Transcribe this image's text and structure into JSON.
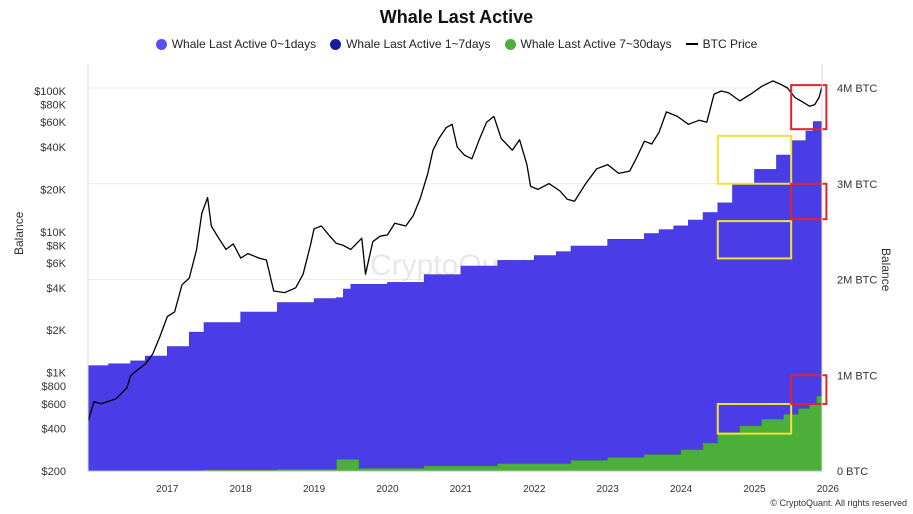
{
  "chart_data": {
    "type": "area",
    "title": "Whale Last Active",
    "legend_position": "top-center",
    "left_axis_title": "Balance",
    "right_axis_title": "Balance",
    "credit": "© CryptoQuant. All rights reserved",
    "watermark": "CryptoQuant",
    "x_ticks": [
      "2017",
      "2018",
      "2019",
      "2020",
      "2021",
      "2022",
      "2023",
      "2024",
      "2025",
      "2026"
    ],
    "x_range": [
      2016.42,
      2026.42
    ],
    "left_axis": {
      "label": "Balance",
      "scale": "log",
      "range": [
        200,
        130000
      ],
      "ticks": [
        {
          "v": 200,
          "t": "$200"
        },
        {
          "v": 400,
          "t": "$400"
        },
        {
          "v": 600,
          "t": "$600"
        },
        {
          "v": 800,
          "t": "$800"
        },
        {
          "v": 1000,
          "t": "$1K"
        },
        {
          "v": 2000,
          "t": "$2K"
        },
        {
          "v": 4000,
          "t": "$4K"
        },
        {
          "v": 6000,
          "t": "$6K"
        },
        {
          "v": 8000,
          "t": "$8K"
        },
        {
          "v": 10000,
          "t": "$10K"
        },
        {
          "v": 20000,
          "t": "$20K"
        },
        {
          "v": 40000,
          "t": "$40K"
        },
        {
          "v": 60000,
          "t": "$60K"
        },
        {
          "v": 80000,
          "t": "$80K"
        },
        {
          "v": 100000,
          "t": "$100K"
        }
      ]
    },
    "right_axis": {
      "label": "Balance",
      "scale": "linear",
      "range": [
        0,
        4200000
      ],
      "ticks": [
        {
          "v": 0,
          "t": "0 BTC"
        },
        {
          "v": 1000000,
          "t": "1M BTC"
        },
        {
          "v": 2000000,
          "t": "2M BTC"
        },
        {
          "v": 3000000,
          "t": "3M BTC"
        },
        {
          "v": 4000000,
          "t": "4M BTC"
        }
      ]
    },
    "grid": "horizontal",
    "series": [
      {
        "name": "Whale Last Active 0~1days",
        "color": "#4a3de8",
        "kind": "area",
        "axis": "right",
        "x": [
          2016.42,
          2016.7,
          2017.0,
          2017.2,
          2017.5,
          2017.8,
          2018.0,
          2018.5,
          2019.0,
          2019.5,
          2019.8,
          2019.9,
          2020.0,
          2020.5,
          2021.0,
          2021.5,
          2022.0,
          2022.5,
          2022.8,
          2023.0,
          2023.5,
          2024.0,
          2024.2,
          2024.4,
          2024.6,
          2024.8,
          2025.0,
          2025.2,
          2025.5,
          2025.8,
          2026.0,
          2026.2,
          2026.3,
          2026.42
        ],
        "y": [
          1100000,
          1120000,
          1150000,
          1200000,
          1300000,
          1450000,
          1550000,
          1660000,
          1760000,
          1800000,
          1810000,
          1900000,
          1950000,
          1970000,
          2050000,
          2140000,
          2200000,
          2250000,
          2290000,
          2350000,
          2420000,
          2480000,
          2520000,
          2560000,
          2620000,
          2700000,
          2800000,
          3000000,
          3150000,
          3300000,
          3450000,
          3550000,
          3650000,
          3920000
        ]
      },
      {
        "name": "Whale Last Active 1~7days",
        "color": "#1a1aa0",
        "kind": "area",
        "axis": "right",
        "x": [
          2016.42,
          2026.42
        ],
        "y": [
          0,
          0
        ]
      },
      {
        "name": "Whale Last Active 7~30days",
        "color": "#4caf3a",
        "kind": "area",
        "axis": "right",
        "x": [
          2016.42,
          2017.0,
          2018.0,
          2019.0,
          2019.8,
          2019.81,
          2020.1,
          2020.11,
          2021.0,
          2022.0,
          2023.0,
          2023.5,
          2024.0,
          2024.5,
          2024.8,
          2025.0,
          2025.3,
          2025.6,
          2025.9,
          2026.1,
          2026.25,
          2026.35,
          2026.42
        ],
        "y": [
          0,
          2000,
          8000,
          15000,
          20000,
          120000,
          120000,
          25000,
          50000,
          75000,
          110000,
          140000,
          170000,
          220000,
          290000,
          400000,
          470000,
          540000,
          590000,
          650000,
          700000,
          780000,
          950000
        ]
      },
      {
        "name": "BTC Price",
        "color": "#000000",
        "kind": "line",
        "axis": "left",
        "x": [
          2016.42,
          2016.5,
          2016.6,
          2016.8,
          2016.95,
          2017.0,
          2017.1,
          2017.2,
          2017.3,
          2017.4,
          2017.5,
          2017.6,
          2017.7,
          2017.8,
          2017.9,
          2017.97,
          2018.05,
          2018.1,
          2018.2,
          2018.3,
          2018.4,
          2018.5,
          2018.6,
          2018.75,
          2018.85,
          2018.95,
          2019.1,
          2019.25,
          2019.35,
          2019.45,
          2019.5,
          2019.6,
          2019.7,
          2019.8,
          2019.9,
          2020.0,
          2020.15,
          2020.2,
          2020.3,
          2020.4,
          2020.5,
          2020.6,
          2020.75,
          2020.85,
          2020.95,
          2021.05,
          2021.12,
          2021.2,
          2021.3,
          2021.38,
          2021.45,
          2021.55,
          2021.65,
          2021.75,
          2021.85,
          2021.95,
          2022.05,
          2022.2,
          2022.3,
          2022.4,
          2022.45,
          2022.55,
          2022.7,
          2022.85,
          2022.95,
          2023.05,
          2023.2,
          2023.35,
          2023.5,
          2023.65,
          2023.8,
          2023.9,
          2024.0,
          2024.1,
          2024.2,
          2024.3,
          2024.45,
          2024.6,
          2024.75,
          2024.85,
          2024.95,
          2025.05,
          2025.15,
          2025.3,
          2025.45,
          2025.6,
          2025.75,
          2025.85,
          2025.95,
          2026.05,
          2026.15,
          2026.25,
          2026.32,
          2026.38,
          2026.42
        ],
        "y": [
          450,
          620,
          600,
          650,
          780,
          950,
          1050,
          1150,
          1350,
          1800,
          2500,
          2700,
          4200,
          4700,
          7500,
          13500,
          17500,
          11000,
          9000,
          7500,
          8200,
          6500,
          7000,
          6500,
          6300,
          3800,
          3700,
          4000,
          5000,
          8000,
          10500,
          11000,
          9500,
          8300,
          8000,
          7500,
          9000,
          5000,
          8500,
          9300,
          9500,
          11500,
          11000,
          13000,
          17500,
          26000,
          38000,
          46000,
          55000,
          58000,
          40000,
          35000,
          33000,
          45000,
          60000,
          66000,
          46000,
          38000,
          45000,
          30000,
          21000,
          20000,
          22000,
          19500,
          17000,
          16500,
          22000,
          28000,
          30000,
          26000,
          27000,
          34000,
          44000,
          42000,
          51000,
          71000,
          66000,
          58000,
          62000,
          60000,
          95000,
          100000,
          97000,
          85000,
          95000,
          108000,
          118000,
          112000,
          105000,
          90000,
          84000,
          78000,
          80000,
          90000,
          108000
        ]
      }
    ],
    "annotations": {
      "yellow_boxes": [
        {
          "x0": 2025.0,
          "x1": 2026.0,
          "axis": "right",
          "y0": 3000000,
          "y1": 3500000
        },
        {
          "x0": 2025.0,
          "x1": 2026.0,
          "axis": "right",
          "y0": 2220000,
          "y1": 2610000
        },
        {
          "x0": 2025.0,
          "x1": 2026.0,
          "axis": "right",
          "y0": 390000,
          "y1": 700000
        }
      ],
      "red_boxes": [
        {
          "x0": 2026.0,
          "x1": 2026.48,
          "axis": "right",
          "y0": 3570000,
          "y1": 4030000
        },
        {
          "x0": 2026.0,
          "x1": 2026.48,
          "axis": "right",
          "y0": 2630000,
          "y1": 3000000
        },
        {
          "x0": 2026.0,
          "x1": 2026.48,
          "axis": "right",
          "y0": 700000,
          "y1": 1000000
        }
      ]
    }
  }
}
